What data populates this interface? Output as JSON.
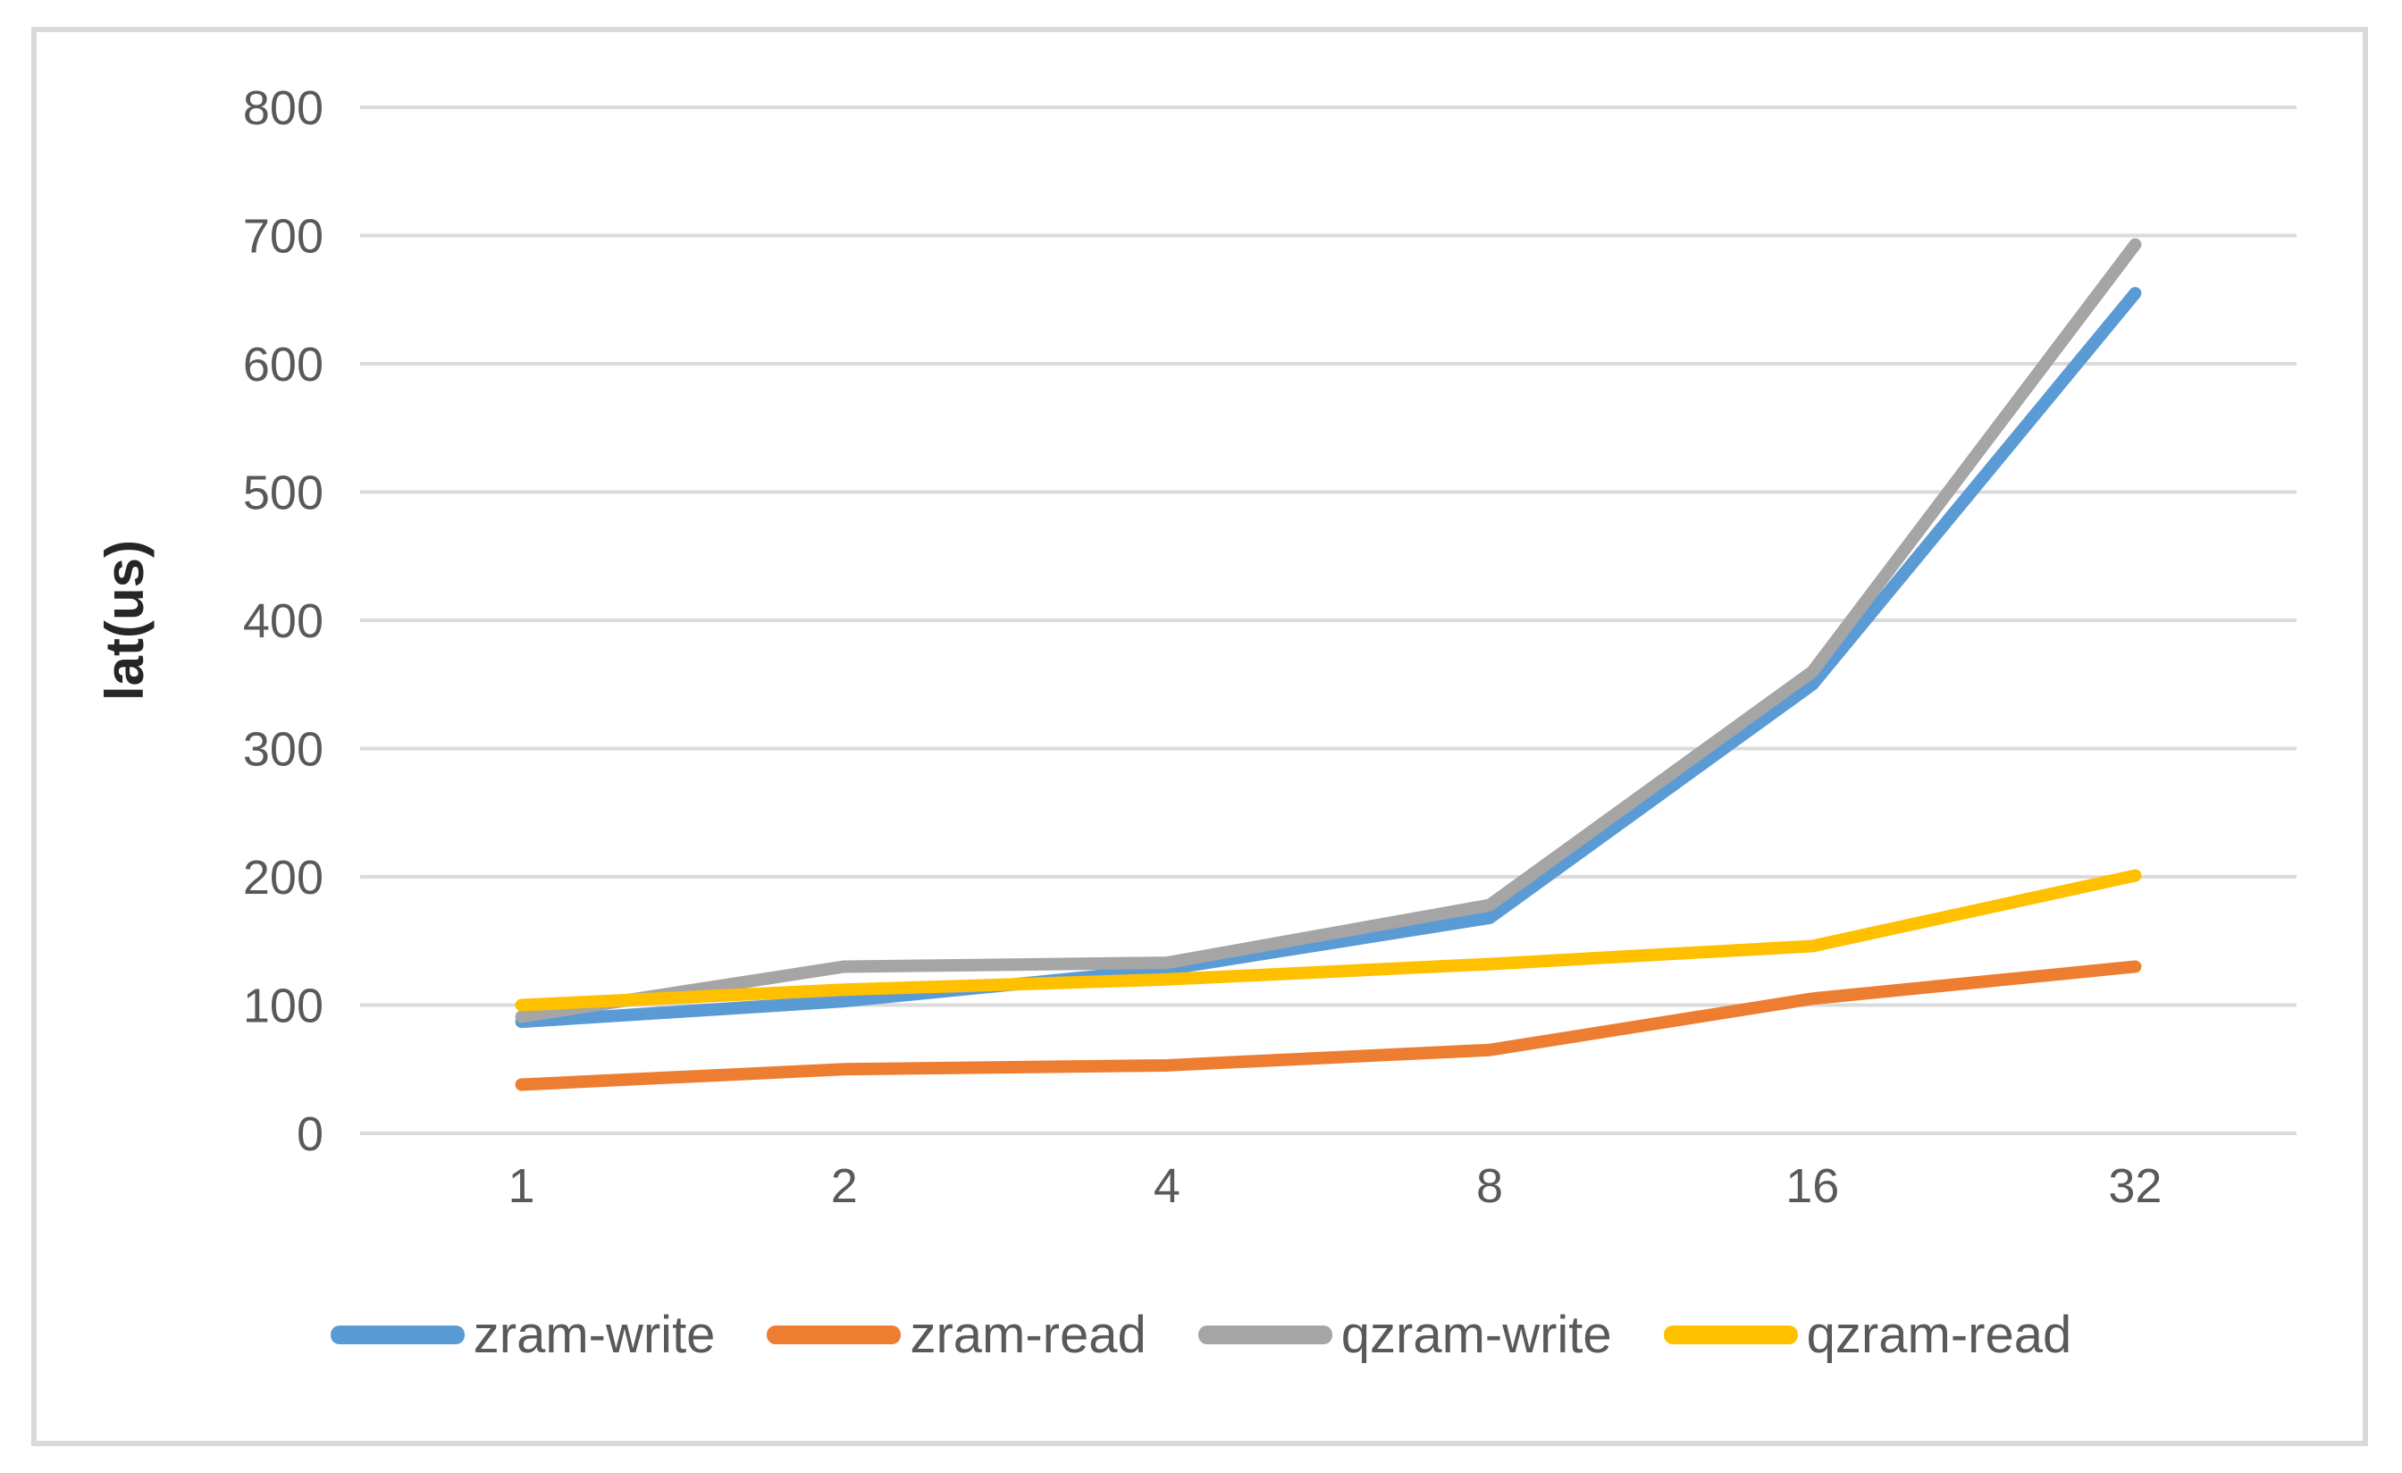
{
  "chart_data": {
    "type": "line",
    "title": "",
    "xlabel": "",
    "ylabel": "lat(us)",
    "categories": [
      "1",
      "2",
      "4",
      "8",
      "16",
      "32"
    ],
    "series": [
      {
        "name": "zram-write",
        "color": "#5B9BD5",
        "values": [
          87,
          103,
          128,
          168,
          350,
          655
        ]
      },
      {
        "name": "zram-read",
        "color": "#ED7D31",
        "values": [
          38,
          50,
          53,
          65,
          105,
          130
        ]
      },
      {
        "name": "qzram-write",
        "color": "#A5A5A5",
        "values": [
          91,
          130,
          133,
          178,
          360,
          693
        ]
      },
      {
        "name": "qzram-read",
        "color": "#FFC000",
        "values": [
          100,
          112,
          120,
          132,
          146,
          201
        ]
      }
    ],
    "ylim": [
      0,
      800
    ],
    "yticks": [
      0,
      100,
      200,
      300,
      400,
      500,
      600,
      700,
      800
    ],
    "grid": true,
    "legend_position": "bottom"
  },
  "style_colors": {
    "gridline": "#DBDBDB",
    "tick_label": "#595959",
    "legend_text": "#595959",
    "axis_title": "#262626",
    "chart_border": "#D9D9D9"
  }
}
